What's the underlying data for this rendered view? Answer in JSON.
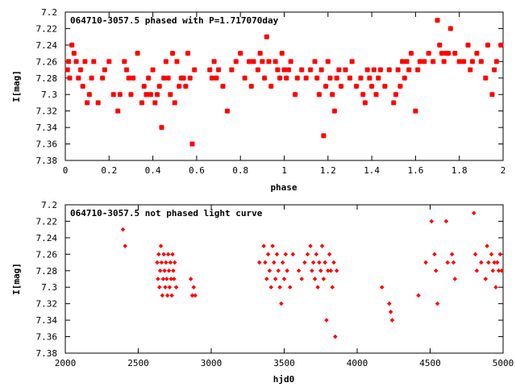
{
  "chart_data": [
    {
      "type": "scatter",
      "title": "064710-3057.5 phased with P=1.717070day",
      "xlabel": "phase",
      "ylabel": "I[mag]",
      "xlim": [
        0,
        2
      ],
      "ylim": [
        7.2,
        7.38
      ],
      "y_inverted": true,
      "x_ticks": [
        "0",
        "0.2",
        "0.4",
        "0.6",
        "0.8",
        "1",
        "1.2",
        "1.4",
        "1.6",
        "1.8",
        "2"
      ],
      "y_ticks": [
        "7.2",
        "7.22",
        "7.24",
        "7.26",
        "7.28",
        "7.3",
        "7.32",
        "7.34",
        "7.36",
        "7.38"
      ],
      "grid": false,
      "marker_color": "#ff0000",
      "marker": "star",
      "points": [
        [
          0.01,
          7.27
        ],
        [
          0.015,
          7.26
        ],
        [
          0.02,
          7.28
        ],
        [
          0.03,
          7.24
        ],
        [
          0.04,
          7.25
        ],
        [
          0.05,
          7.26
        ],
        [
          0.06,
          7.28
        ],
        [
          0.07,
          7.27
        ],
        [
          0.08,
          7.29
        ],
        [
          0.09,
          7.26
        ],
        [
          0.1,
          7.31
        ],
        [
          0.11,
          7.3
        ],
        [
          0.12,
          7.28
        ],
        [
          0.13,
          7.26
        ],
        [
          0.15,
          7.31
        ],
        [
          0.17,
          7.28
        ],
        [
          0.18,
          7.27
        ],
        [
          0.2,
          7.26
        ],
        [
          0.22,
          7.3
        ],
        [
          0.24,
          7.32
        ],
        [
          0.25,
          7.3
        ],
        [
          0.27,
          7.26
        ],
        [
          0.28,
          7.27
        ],
        [
          0.29,
          7.28
        ],
        [
          0.3,
          7.3
        ],
        [
          0.31,
          7.28
        ],
        [
          0.33,
          7.25
        ],
        [
          0.35,
          7.31
        ],
        [
          0.36,
          7.29
        ],
        [
          0.37,
          7.3
        ],
        [
          0.38,
          7.28
        ],
        [
          0.39,
          7.3
        ],
        [
          0.4,
          7.27
        ],
        [
          0.41,
          7.31
        ],
        [
          0.42,
          7.3
        ],
        [
          0.43,
          7.29
        ],
        [
          0.44,
          7.34
        ],
        [
          0.45,
          7.28
        ],
        [
          0.46,
          7.26
        ],
        [
          0.47,
          7.28
        ],
        [
          0.48,
          7.3
        ],
        [
          0.49,
          7.25
        ],
        [
          0.5,
          7.31
        ],
        [
          0.51,
          7.26
        ],
        [
          0.52,
          7.29
        ],
        [
          0.53,
          7.28
        ],
        [
          0.54,
          7.28
        ],
        [
          0.55,
          7.29
        ],
        [
          0.56,
          7.25
        ],
        [
          0.57,
          7.28
        ],
        [
          0.58,
          7.36
        ],
        [
          0.59,
          7.27
        ],
        [
          0.66,
          7.27
        ],
        [
          0.67,
          7.28
        ],
        [
          0.68,
          7.26
        ],
        [
          0.69,
          7.28
        ],
        [
          0.7,
          7.27
        ],
        [
          0.72,
          7.29
        ],
        [
          0.74,
          7.32
        ],
        [
          0.76,
          7.27
        ],
        [
          0.78,
          7.26
        ],
        [
          0.8,
          7.25
        ],
        [
          0.82,
          7.28
        ],
        [
          0.84,
          7.26
        ],
        [
          0.85,
          7.29
        ],
        [
          0.86,
          7.26
        ],
        [
          0.88,
          7.27
        ],
        [
          0.89,
          7.25
        ],
        [
          0.9,
          7.26
        ],
        [
          0.91,
          7.28
        ],
        [
          0.92,
          7.23
        ],
        [
          0.93,
          7.26
        ],
        [
          0.94,
          7.29
        ],
        [
          0.96,
          7.26
        ],
        [
          0.97,
          7.27
        ],
        [
          0.98,
          7.28
        ],
        [
          0.99,
          7.25
        ],
        [
          1.0,
          7.27
        ],
        [
          1.01,
          7.28
        ],
        [
          1.02,
          7.27
        ],
        [
          1.03,
          7.26
        ],
        [
          1.05,
          7.3
        ],
        [
          1.06,
          7.28
        ],
        [
          1.08,
          7.27
        ],
        [
          1.1,
          7.28
        ],
        [
          1.12,
          7.27
        ],
        [
          1.14,
          7.26
        ],
        [
          1.15,
          7.28
        ],
        [
          1.16,
          7.3
        ],
        [
          1.17,
          7.27
        ],
        [
          1.18,
          7.35
        ],
        [
          1.19,
          7.29
        ],
        [
          1.2,
          7.26
        ],
        [
          1.21,
          7.28
        ],
        [
          1.22,
          7.3
        ],
        [
          1.23,
          7.32
        ],
        [
          1.24,
          7.28
        ],
        [
          1.25,
          7.27
        ],
        [
          1.26,
          7.29
        ],
        [
          1.28,
          7.27
        ],
        [
          1.3,
          7.28
        ],
        [
          1.31,
          7.26
        ],
        [
          1.33,
          7.29
        ],
        [
          1.35,
          7.28
        ],
        [
          1.36,
          7.3
        ],
        [
          1.37,
          7.31
        ],
        [
          1.38,
          7.27
        ],
        [
          1.39,
          7.28
        ],
        [
          1.4,
          7.29
        ],
        [
          1.41,
          7.27
        ],
        [
          1.42,
          7.3
        ],
        [
          1.43,
          7.28
        ],
        [
          1.44,
          7.27
        ],
        [
          1.46,
          7.29
        ],
        [
          1.48,
          7.27
        ],
        [
          1.5,
          7.31
        ],
        [
          1.51,
          7.3
        ],
        [
          1.52,
          7.27
        ],
        [
          1.53,
          7.29
        ],
        [
          1.54,
          7.26
        ],
        [
          1.55,
          7.28
        ],
        [
          1.56,
          7.26
        ],
        [
          1.57,
          7.27
        ],
        [
          1.58,
          7.25
        ],
        [
          1.6,
          7.32
        ],
        [
          1.61,
          7.27
        ],
        [
          1.62,
          7.26
        ],
        [
          1.64,
          7.26
        ],
        [
          1.66,
          7.25
        ],
        [
          1.68,
          7.26
        ],
        [
          1.7,
          7.21
        ],
        [
          1.71,
          7.24
        ],
        [
          1.72,
          7.25
        ],
        [
          1.73,
          7.26
        ],
        [
          1.74,
          7.25
        ],
        [
          1.75,
          7.25
        ],
        [
          1.76,
          7.22
        ],
        [
          1.78,
          7.25
        ],
        [
          1.8,
          7.26
        ],
        [
          1.82,
          7.26
        ],
        [
          1.84,
          7.24
        ],
        [
          1.85,
          7.27
        ],
        [
          1.86,
          7.26
        ],
        [
          1.88,
          7.25
        ],
        [
          1.9,
          7.26
        ],
        [
          1.92,
          7.28
        ],
        [
          1.93,
          7.24
        ],
        [
          1.95,
          7.3
        ],
        [
          1.96,
          7.27
        ],
        [
          1.97,
          7.26
        ],
        [
          1.99,
          7.24
        ]
      ]
    },
    {
      "type": "scatter",
      "title": "064710-3057.5 not phased light curve",
      "xlabel": "hjd0",
      "ylabel": "I[mag]",
      "xlim": [
        2000,
        5000
      ],
      "ylim": [
        7.2,
        7.38
      ],
      "y_inverted": true,
      "x_ticks": [
        "2000",
        "2500",
        "3000",
        "3500",
        "4000",
        "4500",
        "5000"
      ],
      "y_ticks": [
        "7.2",
        "7.22",
        "7.24",
        "7.26",
        "7.28",
        "7.3",
        "7.32",
        "7.34",
        "7.36",
        "7.38"
      ],
      "grid": false,
      "marker_color": "#ff0000",
      "marker": "diamond",
      "points": [
        [
          2395,
          7.23
        ],
        [
          2410,
          7.25
        ],
        [
          2630,
          7.27
        ],
        [
          2635,
          7.29
        ],
        [
          2640,
          7.26
        ],
        [
          2645,
          7.3
        ],
        [
          2650,
          7.28
        ],
        [
          2655,
          7.25
        ],
        [
          2660,
          7.27
        ],
        [
          2665,
          7.31
        ],
        [
          2670,
          7.29
        ],
        [
          2675,
          7.26
        ],
        [
          2680,
          7.28
        ],
        [
          2685,
          7.3
        ],
        [
          2690,
          7.27
        ],
        [
          2695,
          7.29
        ],
        [
          2700,
          7.31
        ],
        [
          2705,
          7.26
        ],
        [
          2710,
          7.28
        ],
        [
          2715,
          7.3
        ],
        [
          2720,
          7.27
        ],
        [
          2725,
          7.29
        ],
        [
          2730,
          7.31
        ],
        [
          2735,
          7.26
        ],
        [
          2740,
          7.28
        ],
        [
          2745,
          7.29
        ],
        [
          2750,
          7.27
        ],
        [
          2760,
          7.3
        ],
        [
          2860,
          7.29
        ],
        [
          2870,
          7.31
        ],
        [
          2880,
          7.3
        ],
        [
          2890,
          7.31
        ],
        [
          3330,
          7.27
        ],
        [
          3360,
          7.25
        ],
        [
          3370,
          7.27
        ],
        [
          3380,
          7.29
        ],
        [
          3390,
          7.26
        ],
        [
          3400,
          7.28
        ],
        [
          3410,
          7.3
        ],
        [
          3420,
          7.25
        ],
        [
          3430,
          7.27
        ],
        [
          3440,
          7.29
        ],
        [
          3450,
          7.26
        ],
        [
          3460,
          7.28
        ],
        [
          3470,
          7.3
        ],
        [
          3480,
          7.32
        ],
        [
          3490,
          7.27
        ],
        [
          3500,
          7.29
        ],
        [
          3510,
          7.26
        ],
        [
          3520,
          7.28
        ],
        [
          3540,
          7.3
        ],
        [
          3560,
          7.26
        ],
        [
          3600,
          7.28
        ],
        [
          3620,
          7.29
        ],
        [
          3640,
          7.27
        ],
        [
          3660,
          7.26
        ],
        [
          3680,
          7.25
        ],
        [
          3690,
          7.28
        ],
        [
          3700,
          7.27
        ],
        [
          3710,
          7.29
        ],
        [
          3720,
          7.26
        ],
        [
          3730,
          7.3
        ],
        [
          3740,
          7.27
        ],
        [
          3750,
          7.28
        ],
        [
          3760,
          7.25
        ],
        [
          3770,
          7.29
        ],
        [
          3780,
          7.27
        ],
        [
          3790,
          7.34
        ],
        [
          3800,
          7.28
        ],
        [
          3810,
          7.26
        ],
        [
          3820,
          7.28
        ],
        [
          3830,
          7.3
        ],
        [
          3840,
          7.27
        ],
        [
          3850,
          7.36
        ],
        [
          3860,
          7.28
        ],
        [
          4170,
          7.3
        ],
        [
          4220,
          7.32
        ],
        [
          4230,
          7.33
        ],
        [
          4240,
          7.34
        ],
        [
          4420,
          7.31
        ],
        [
          4470,
          7.27
        ],
        [
          4510,
          7.22
        ],
        [
          4530,
          7.26
        ],
        [
          4540,
          7.28
        ],
        [
          4550,
          7.32
        ],
        [
          4610,
          7.22
        ],
        [
          4620,
          7.27
        ],
        [
          4650,
          7.26
        ],
        [
          4660,
          7.27
        ],
        [
          4670,
          7.29
        ],
        [
          4800,
          7.21
        ],
        [
          4810,
          7.26
        ],
        [
          4820,
          7.28
        ],
        [
          4850,
          7.27
        ],
        [
          4880,
          7.29
        ],
        [
          4890,
          7.25
        ],
        [
          4900,
          7.27
        ],
        [
          4920,
          7.26
        ],
        [
          4930,
          7.28
        ],
        [
          4940,
          7.27
        ],
        [
          4950,
          7.3
        ],
        [
          4960,
          7.27
        ],
        [
          4970,
          7.28
        ],
        [
          4980,
          7.26
        ],
        [
          4990,
          7.28
        ]
      ]
    }
  ]
}
